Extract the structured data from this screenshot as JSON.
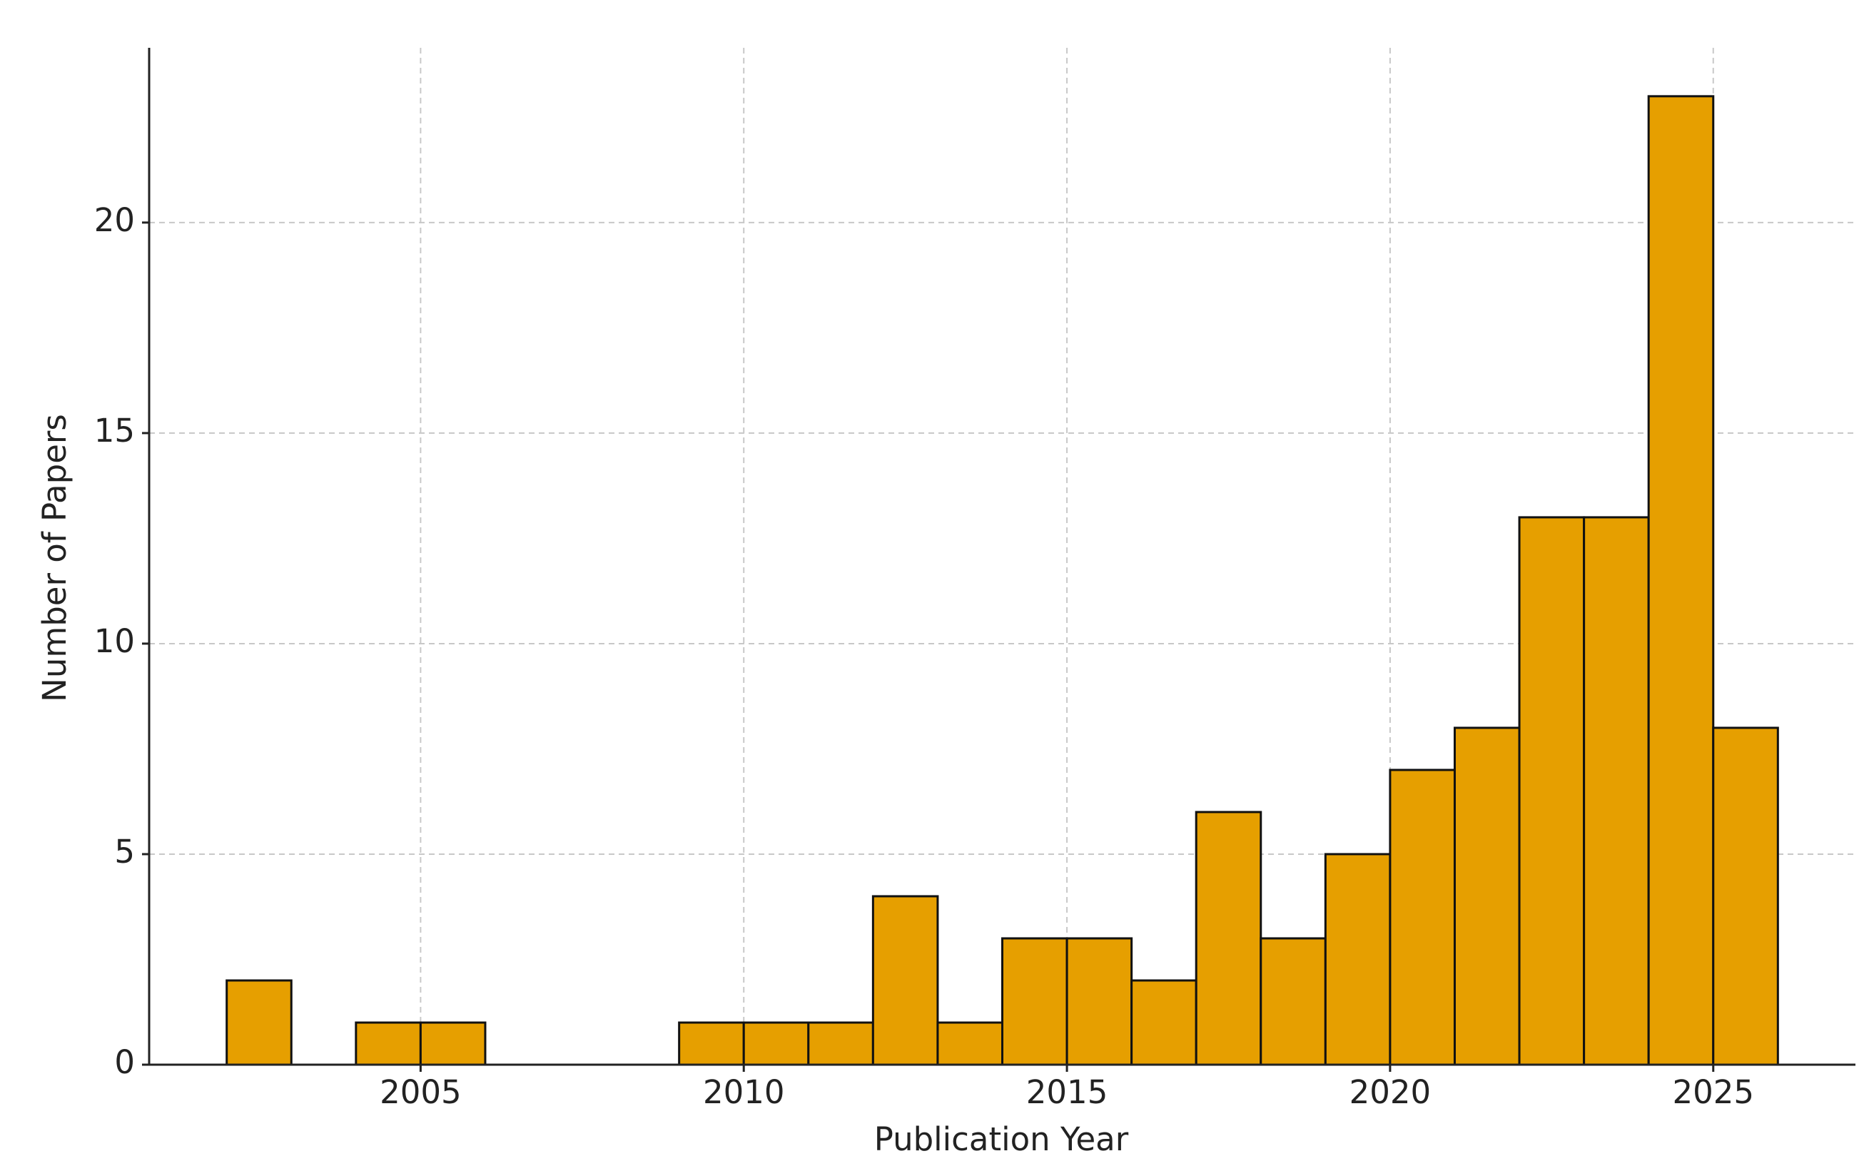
{
  "chart_data": {
    "type": "histogram",
    "x_label": "Publication Year",
    "y_label": "Number of Papers",
    "bins": [
      2002,
      2003,
      2004,
      2005,
      2006,
      2007,
      2008,
      2009,
      2010,
      2011,
      2012,
      2013,
      2014,
      2015,
      2016,
      2017,
      2018,
      2019,
      2020,
      2021,
      2022,
      2023,
      2024,
      2025,
      2026
    ],
    "counts": [
      2,
      0,
      1,
      1,
      0,
      0,
      0,
      1,
      1,
      1,
      4,
      1,
      3,
      3,
      2,
      6,
      3,
      5,
      7,
      8,
      13,
      13,
      23,
      8
    ],
    "color": "#e69f00",
    "xlim": [
      2000.8,
      2027.2
    ],
    "xticks": [
      2005,
      2010,
      2015,
      2020,
      2025
    ],
    "ylim": [
      0,
      24.15
    ],
    "yticks": [
      0,
      5,
      10,
      15,
      20
    ],
    "grid": true
  }
}
